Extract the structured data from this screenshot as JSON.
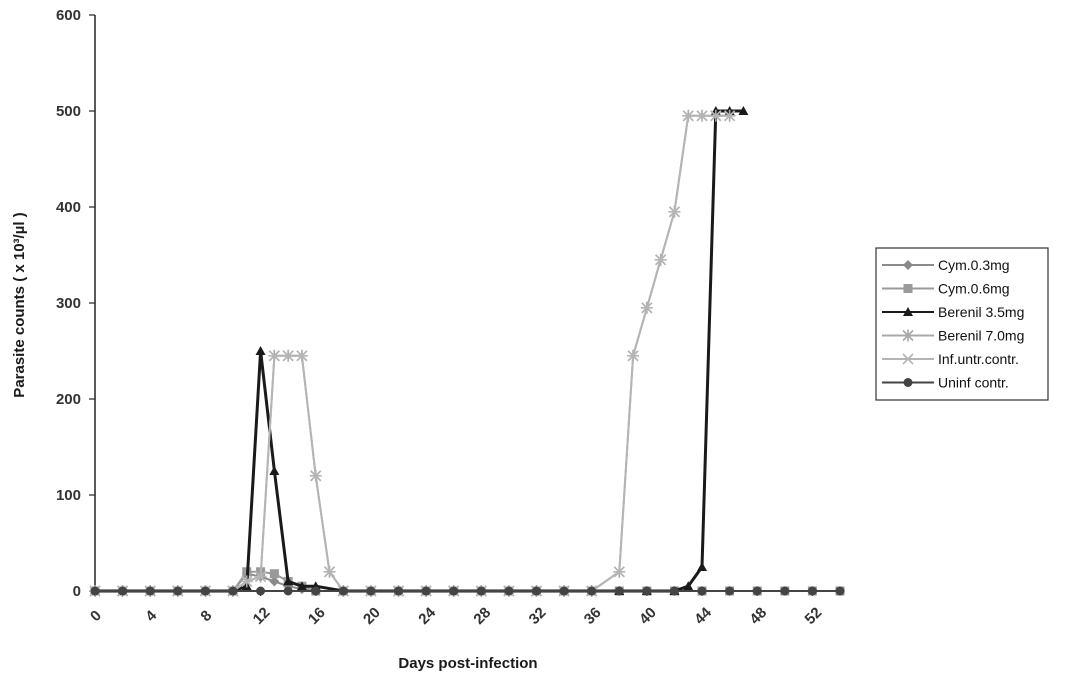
{
  "chart_data": {
    "type": "line",
    "xlabel": "Days post-infection",
    "ylabel": "Parasite counts ( x 10³/µl )",
    "xlim": [
      0,
      54
    ],
    "ylim": [
      0,
      600
    ],
    "x_ticks": [
      0,
      4,
      8,
      12,
      16,
      20,
      24,
      28,
      32,
      36,
      40,
      44,
      48,
      52
    ],
    "y_ticks": [
      0,
      100,
      200,
      300,
      400,
      500,
      600
    ],
    "grid": false,
    "legend_position": "right",
    "series": [
      {
        "name": "Cym.0.3mg",
        "color": "#8a8a8a",
        "marker": "diamond",
        "points": [
          [
            0,
            0
          ],
          [
            2,
            0
          ],
          [
            4,
            0
          ],
          [
            6,
            0
          ],
          [
            8,
            0
          ],
          [
            10,
            0
          ],
          [
            11,
            18
          ],
          [
            12,
            15
          ],
          [
            13,
            10
          ],
          [
            14,
            5
          ],
          [
            15,
            2
          ],
          [
            16,
            0
          ],
          [
            18,
            0
          ],
          [
            20,
            0
          ],
          [
            22,
            0
          ],
          [
            24,
            0
          ],
          [
            26,
            0
          ],
          [
            28,
            0
          ],
          [
            30,
            0
          ],
          [
            32,
            0
          ],
          [
            34,
            0
          ],
          [
            36,
            0
          ],
          [
            38,
            0
          ],
          [
            40,
            0
          ],
          [
            42,
            0
          ],
          [
            44,
            0
          ],
          [
            46,
            0
          ],
          [
            48,
            0
          ],
          [
            50,
            0
          ],
          [
            52,
            0
          ],
          [
            54,
            0
          ]
        ]
      },
      {
        "name": "Cym.0.6mg",
        "color": "#9a9a9a",
        "marker": "square",
        "points": [
          [
            0,
            0
          ],
          [
            2,
            0
          ],
          [
            4,
            0
          ],
          [
            6,
            0
          ],
          [
            8,
            0
          ],
          [
            10,
            0
          ],
          [
            11,
            20
          ],
          [
            12,
            20
          ],
          [
            13,
            18
          ],
          [
            14,
            10
          ],
          [
            15,
            5
          ],
          [
            16,
            0
          ],
          [
            18,
            0
          ],
          [
            20,
            0
          ],
          [
            22,
            0
          ],
          [
            24,
            0
          ],
          [
            26,
            0
          ],
          [
            28,
            0
          ],
          [
            30,
            0
          ],
          [
            32,
            0
          ],
          [
            34,
            0
          ],
          [
            36,
            0
          ],
          [
            38,
            0
          ],
          [
            40,
            0
          ],
          [
            42,
            0
          ],
          [
            44,
            0
          ],
          [
            46,
            0
          ],
          [
            48,
            0
          ],
          [
            50,
            0
          ],
          [
            52,
            0
          ],
          [
            54,
            0
          ]
        ]
      },
      {
        "name": "Berenil 3.5mg",
        "color": "#1a1a1a",
        "marker": "triangle",
        "points": [
          [
            0,
            0
          ],
          [
            2,
            0
          ],
          [
            4,
            0
          ],
          [
            6,
            0
          ],
          [
            8,
            0
          ],
          [
            10,
            0
          ],
          [
            11,
            5
          ],
          [
            12,
            250
          ],
          [
            13,
            125
          ],
          [
            14,
            10
          ],
          [
            15,
            5
          ],
          [
            16,
            5
          ],
          [
            18,
            0
          ],
          [
            20,
            0
          ],
          [
            22,
            0
          ],
          [
            24,
            0
          ],
          [
            26,
            0
          ],
          [
            28,
            0
          ],
          [
            30,
            0
          ],
          [
            32,
            0
          ],
          [
            34,
            0
          ],
          [
            36,
            0
          ],
          [
            38,
            0
          ],
          [
            40,
            0
          ],
          [
            42,
            0
          ],
          [
            43,
            5
          ],
          [
            44,
            25
          ],
          [
            45,
            500
          ],
          [
            46,
            500
          ],
          [
            47,
            500
          ]
        ]
      },
      {
        "name": "Berenil 7.0mg",
        "color": "#a8a8a8",
        "marker": "star",
        "points": [
          [
            0,
            0
          ],
          [
            2,
            0
          ],
          [
            4,
            0
          ],
          [
            6,
            0
          ],
          [
            8,
            0
          ],
          [
            10,
            0
          ],
          [
            11,
            10
          ],
          [
            12,
            15
          ],
          [
            13,
            245
          ],
          [
            14,
            245
          ],
          [
            15,
            245
          ],
          [
            16,
            120
          ],
          [
            17,
            20
          ],
          [
            18,
            0
          ],
          [
            20,
            0
          ],
          [
            22,
            0
          ],
          [
            24,
            0
          ],
          [
            26,
            0
          ],
          [
            28,
            0
          ],
          [
            30,
            0
          ],
          [
            32,
            0
          ],
          [
            34,
            0
          ],
          [
            36,
            0
          ],
          [
            38,
            20
          ],
          [
            39,
            245
          ],
          [
            40,
            295
          ],
          [
            41,
            345
          ],
          [
            42,
            395
          ],
          [
            43,
            495
          ],
          [
            44,
            495
          ],
          [
            45,
            495
          ],
          [
            46,
            495
          ]
        ]
      },
      {
        "name": "Inf.untr.contr.",
        "color": "#b5b5b5",
        "marker": "asterisk",
        "points": [
          [
            0,
            0
          ],
          [
            2,
            0
          ],
          [
            4,
            0
          ],
          [
            6,
            0
          ],
          [
            8,
            0
          ],
          [
            10,
            0
          ],
          [
            11,
            10
          ],
          [
            12,
            15
          ],
          [
            13,
            245
          ],
          [
            14,
            245
          ],
          [
            15,
            245
          ],
          [
            16,
            120
          ],
          [
            17,
            20
          ],
          [
            18,
            0
          ],
          [
            20,
            0
          ],
          [
            22,
            0
          ],
          [
            24,
            0
          ],
          [
            26,
            0
          ],
          [
            28,
            0
          ],
          [
            30,
            0
          ],
          [
            32,
            0
          ],
          [
            34,
            0
          ],
          [
            36,
            0
          ],
          [
            38,
            20
          ],
          [
            39,
            245
          ],
          [
            40,
            295
          ],
          [
            41,
            345
          ],
          [
            42,
            395
          ],
          [
            43,
            495
          ],
          [
            44,
            495
          ],
          [
            45,
            495
          ],
          [
            46,
            495
          ]
        ]
      },
      {
        "name": "Uninf contr.",
        "color": "#444444",
        "marker": "circle",
        "points": [
          [
            0,
            0
          ],
          [
            2,
            0
          ],
          [
            4,
            0
          ],
          [
            6,
            0
          ],
          [
            8,
            0
          ],
          [
            10,
            0
          ],
          [
            12,
            0
          ],
          [
            14,
            0
          ],
          [
            16,
            0
          ],
          [
            18,
            0
          ],
          [
            20,
            0
          ],
          [
            22,
            0
          ],
          [
            24,
            0
          ],
          [
            26,
            0
          ],
          [
            28,
            0
          ],
          [
            30,
            0
          ],
          [
            32,
            0
          ],
          [
            34,
            0
          ],
          [
            36,
            0
          ],
          [
            38,
            0
          ],
          [
            40,
            0
          ],
          [
            42,
            0
          ],
          [
            44,
            0
          ],
          [
            46,
            0
          ],
          [
            48,
            0
          ],
          [
            50,
            0
          ],
          [
            52,
            0
          ],
          [
            54,
            0
          ]
        ]
      }
    ]
  }
}
